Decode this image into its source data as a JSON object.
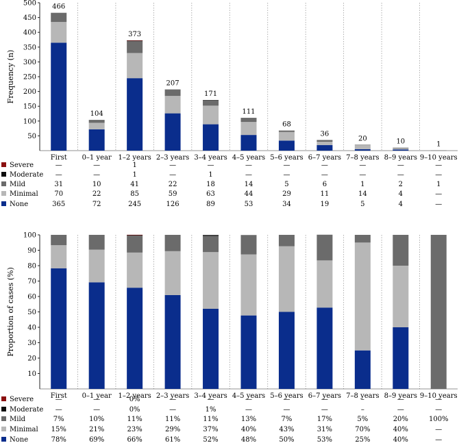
{
  "chart_data": [
    {
      "type": "bar",
      "stacked": true,
      "title": "",
      "xlabel": "",
      "ylabel": "Frequency (n)",
      "ylim": [
        0,
        500
      ],
      "yticks": [
        50,
        100,
        150,
        200,
        250,
        300,
        350,
        400,
        450,
        500
      ],
      "grid": "vertical dotted",
      "categories": [
        "First",
        "0–1 year",
        "1–2 years",
        "2–3 years",
        "3–4 years",
        "4–5 years",
        "5–6 years",
        "6–7 years",
        "7–8 years",
        "8–9 years",
        "9–10 years"
      ],
      "totals": [
        "466",
        "104",
        "373",
        "207",
        "171",
        "111",
        "68",
        "36",
        "20",
        "10",
        "1"
      ],
      "series": [
        {
          "name": "None",
          "color": "#0a2d8c",
          "values": [
            365,
            72,
            245,
            126,
            89,
            53,
            34,
            19,
            5,
            4,
            0
          ]
        },
        {
          "name": "Minimal",
          "color": "#b7b7b7",
          "values": [
            70,
            22,
            85,
            59,
            63,
            44,
            29,
            11,
            14,
            4,
            0
          ]
        },
        {
          "name": "Mild",
          "color": "#6b6b6b",
          "values": [
            31,
            10,
            41,
            22,
            18,
            14,
            5,
            6,
            1,
            2,
            1
          ]
        },
        {
          "name": "Moderate",
          "color": "#0d0d0d",
          "values": [
            0,
            0,
            1,
            0,
            1,
            0,
            0,
            0,
            0,
            0,
            0
          ]
        },
        {
          "name": "Severe",
          "color": "#8b1010",
          "values": [
            0,
            0,
            1,
            0,
            0,
            0,
            0,
            0,
            0,
            0,
            0
          ]
        }
      ],
      "table": [
        {
          "name": "Severe",
          "color": "#8b1010",
          "cells": [
            "—",
            "—",
            "1",
            "—",
            "—",
            "—",
            "—",
            "—",
            "—",
            "—",
            "—"
          ]
        },
        {
          "name": "Moderate",
          "color": "#0d0d0d",
          "cells": [
            "—",
            "—",
            "1",
            "—",
            "1",
            "—",
            "—",
            "—",
            "—",
            "—",
            "—"
          ]
        },
        {
          "name": "Mild",
          "color": "#6b6b6b",
          "cells": [
            "31",
            "10",
            "41",
            "22",
            "18",
            "14",
            "5",
            "6",
            "1",
            "2",
            "1"
          ]
        },
        {
          "name": "Minimal",
          "color": "#b7b7b7",
          "cells": [
            "70",
            "22",
            "85",
            "59",
            "63",
            "44",
            "29",
            "11",
            "14",
            "4",
            "—"
          ]
        },
        {
          "name": "None",
          "color": "#0a2d8c",
          "cells": [
            "365",
            "72",
            "245",
            "126",
            "89",
            "53",
            "34",
            "19",
            "5",
            "4",
            "—"
          ]
        }
      ]
    },
    {
      "type": "bar",
      "stacked": true,
      "title": "",
      "xlabel": "",
      "ylabel": "Proportion of cases (%)",
      "ylim": [
        0,
        100
      ],
      "yticks": [
        10,
        20,
        30,
        40,
        50,
        60,
        70,
        80,
        90,
        100
      ],
      "grid": "vertical dotted",
      "categories": [
        "First",
        "0–1 year",
        "1–2 years",
        "2–3 years",
        "3–4 years",
        "4–5 years",
        "5–6 years",
        "6–7 years",
        "7–8 years",
        "8–9 years",
        "9–10 years"
      ],
      "series": [
        {
          "name": "None",
          "color": "#0a2d8c",
          "values": [
            78.3,
            69.2,
            65.7,
            60.9,
            52.0,
            47.7,
            50.0,
            52.8,
            25.0,
            40.0,
            0
          ]
        },
        {
          "name": "Minimal",
          "color": "#b7b7b7",
          "values": [
            15.0,
            21.2,
            22.8,
            28.5,
            36.8,
            39.6,
            42.6,
            30.6,
            70.0,
            40.0,
            0
          ]
        },
        {
          "name": "Mild",
          "color": "#6b6b6b",
          "values": [
            6.7,
            9.6,
            11.0,
            10.6,
            10.5,
            12.6,
            7.4,
            16.7,
            5.0,
            20.0,
            100
          ]
        },
        {
          "name": "Moderate",
          "color": "#0d0d0d",
          "values": [
            0,
            0,
            0.27,
            0,
            0.6,
            0,
            0,
            0,
            0,
            0,
            0
          ]
        },
        {
          "name": "Severe",
          "color": "#8b1010",
          "values": [
            0,
            0,
            0.27,
            0,
            0,
            0,
            0,
            0,
            0,
            0,
            0
          ]
        }
      ],
      "table": [
        {
          "name": "Severe",
          "color": "#8b1010",
          "cells": [
            "—",
            "—",
            "0%",
            "—",
            "—",
            "—",
            "—",
            "—",
            "–",
            "—",
            "—"
          ]
        },
        {
          "name": "Moderate",
          "color": "#0d0d0d",
          "cells": [
            "—",
            "—",
            "0%",
            "—",
            "1%",
            "—",
            "—",
            "—",
            "–",
            "—",
            "—"
          ]
        },
        {
          "name": "Mild",
          "color": "#6b6b6b",
          "cells": [
            "7%",
            "10%",
            "11%",
            "11%",
            "11%",
            "13%",
            "7%",
            "17%",
            "5%",
            "20%",
            "100%"
          ]
        },
        {
          "name": "Minimal",
          "color": "#b7b7b7",
          "cells": [
            "15%",
            "21%",
            "23%",
            "29%",
            "37%",
            "40%",
            "43%",
            "31%",
            "70%",
            "40%",
            "—"
          ]
        },
        {
          "name": "None",
          "color": "#0a2d8c",
          "cells": [
            "78%",
            "69%",
            "66%",
            "61%",
            "52%",
            "48%",
            "50%",
            "53%",
            "25%",
            "40%",
            "—"
          ]
        }
      ]
    }
  ]
}
